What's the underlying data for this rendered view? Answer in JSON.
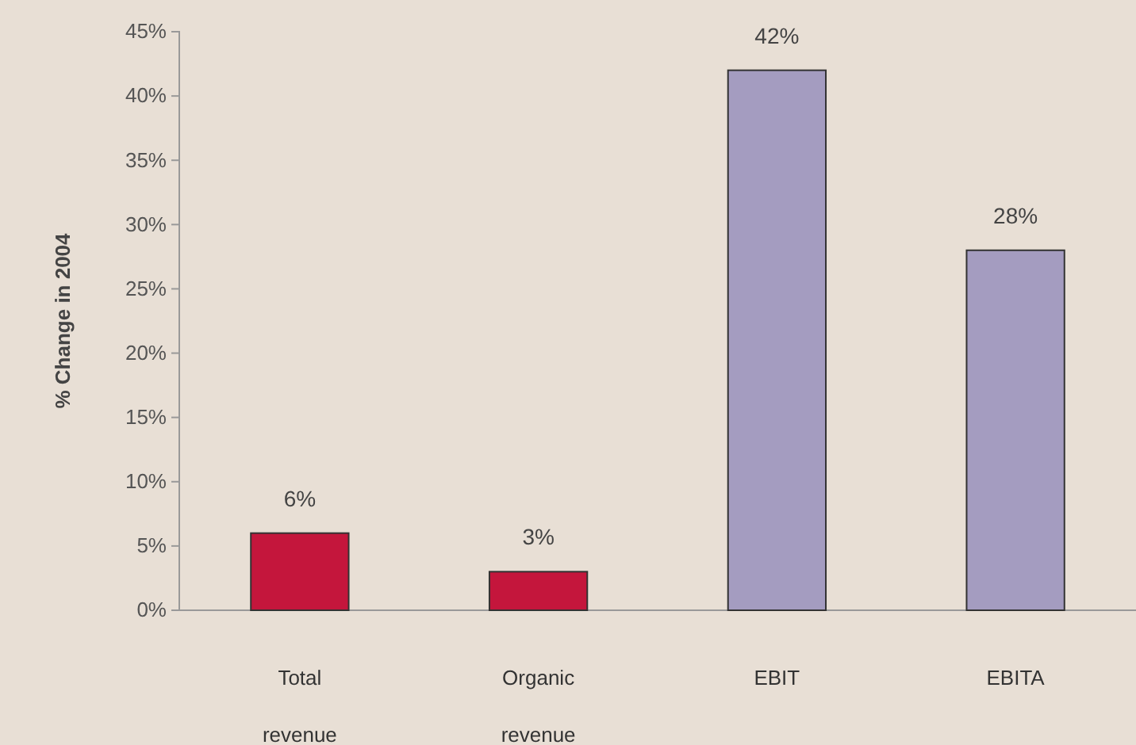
{
  "chart_data": {
    "type": "bar",
    "ylabel": "% Change in 2004",
    "categories": [
      "Total revenue",
      "Organic revenue",
      "EBIT",
      "EBITA"
    ],
    "values": [
      6,
      3,
      42,
      28
    ],
    "colors": [
      "#c4163c",
      "#c4163c",
      "#a49cc0",
      "#a49cc0"
    ],
    "value_labels": [
      "6%",
      "3%",
      "42%",
      "28%"
    ],
    "ylim": [
      0,
      45
    ],
    "yticks": [
      {
        "value": 0,
        "label": "0%"
      },
      {
        "value": 5,
        "label": "5%"
      },
      {
        "value": 10,
        "label": "10%"
      },
      {
        "value": 15,
        "label": "15%"
      },
      {
        "value": 20,
        "label": "20%"
      },
      {
        "value": 25,
        "label": "25%"
      },
      {
        "value": 30,
        "label": "30%"
      },
      {
        "value": 35,
        "label": "35%"
      },
      {
        "value": 40,
        "label": "40%"
      },
      {
        "value": 45,
        "label": "45%"
      }
    ],
    "grid": false
  }
}
